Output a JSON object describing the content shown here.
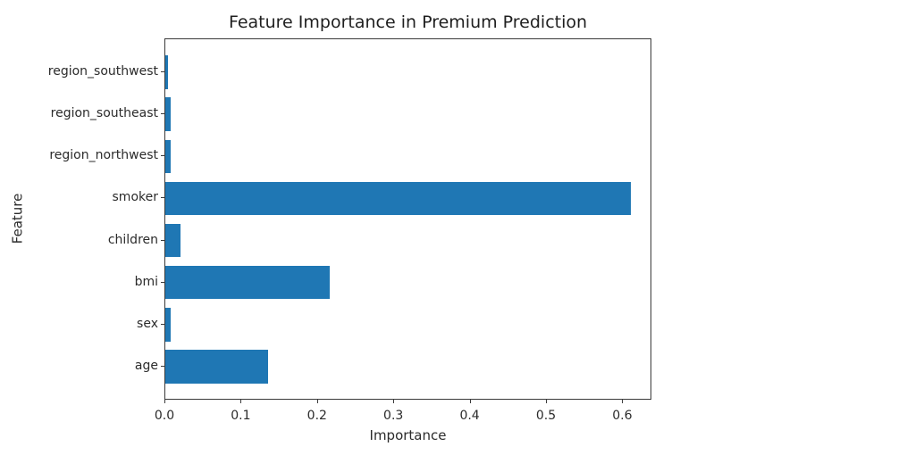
{
  "figure": {
    "background_color": "#ffffff"
  },
  "chart_data": {
    "type": "bar",
    "orientation": "horizontal",
    "title": "Feature Importance in Premium Prediction",
    "xlabel": "Importance",
    "ylabel": "Feature",
    "categories_top_to_bottom": [
      "region_southwest",
      "region_southeast",
      "region_northwest",
      "smoker",
      "children",
      "bmi",
      "sex",
      "age"
    ],
    "values": [
      0.004,
      0.0075,
      0.0065,
      0.61,
      0.02,
      0.215,
      0.0065,
      0.135
    ],
    "xlim": [
      0,
      0.637
    ],
    "xticks": [
      0.0,
      0.1,
      0.2,
      0.3,
      0.4,
      0.5,
      0.6
    ],
    "xtick_labels": [
      "0.0",
      "0.1",
      "0.2",
      "0.3",
      "0.4",
      "0.5",
      "0.6"
    ],
    "bar_color": "#1f77b4",
    "axis_color": "#3a3a3a",
    "text_color": "#2b2b2b",
    "grid": false,
    "legend": "none"
  }
}
